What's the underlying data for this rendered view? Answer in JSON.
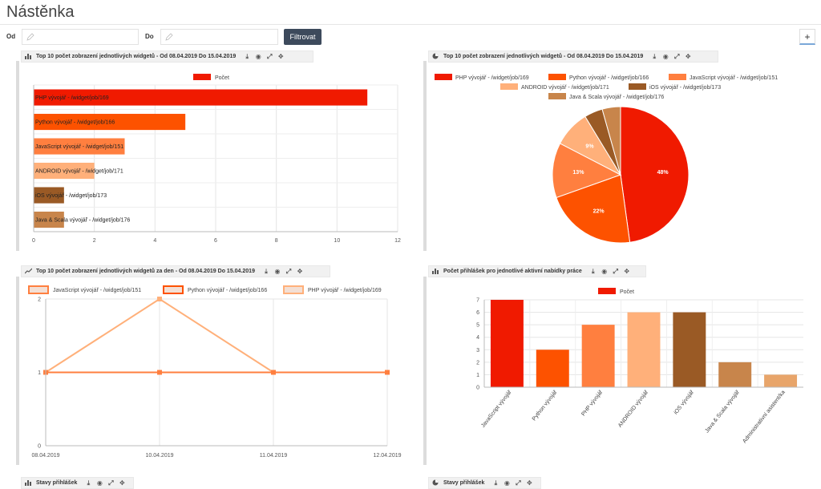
{
  "page": {
    "title": "Nástěnka"
  },
  "filters": {
    "from_label": "Od",
    "to_label": "Do",
    "from_value": "",
    "to_value": "",
    "filter_button": "Filtrovat",
    "add_button": "+"
  },
  "tool_icons": [
    "download-icon",
    "eye-icon",
    "expand-icon",
    "move-icon"
  ],
  "panels": {
    "bar_top10": {
      "title": "Top 10 počet zobrazení jednotlivých widgetů - Od 08.04.2019 Do 15.04.2019",
      "icon": "bar-chart-icon"
    },
    "pie_top10": {
      "title": "Top 10 počet zobrazení jednotlivých widgetů - Od 08.04.2019 Do 15.04.2019",
      "icon": "pie-chart-icon"
    },
    "line_daily": {
      "title": "Top 10 počet zobrazení jednotlivých widgetů za den - Od 08.04.2019 Do 15.04.2019",
      "icon": "line-chart-icon"
    },
    "bar_applications": {
      "title": "Počet přihlášek pro jednotlivé aktivní nabídky práce",
      "icon": "bar-chart-icon"
    },
    "states_left": {
      "title": "Stavy přihlášek",
      "icon": "bar-chart-icon"
    },
    "states_right": {
      "title": "Stavy přihlášek",
      "icon": "pie-chart-icon"
    }
  },
  "chart_data": [
    {
      "id": "hbar",
      "type": "bar",
      "orientation": "horizontal",
      "legend": "Počet",
      "categories": [
        "PHP vývojář - /widget/job/169",
        "Python vývojář - /widget/job/166",
        "JavaScript vývojář - /widget/job/151",
        "ANDROID vývojář - /widget/job/171",
        "iOS vývojář - /widget/job/173",
        "Java & Scala vývojář - /widget/job/176"
      ],
      "values": [
        11,
        5,
        3,
        2,
        1,
        1
      ],
      "colors": [
        "#f01a00",
        "#fd5200",
        "#ff7f3f",
        "#ffb07a",
        "#9a5a25",
        "#c8854b"
      ],
      "xlim": [
        0,
        12
      ],
      "xticks": [
        0,
        2,
        4,
        6,
        8,
        10,
        12
      ]
    },
    {
      "id": "pie",
      "type": "pie",
      "legend": [
        "PHP vývojář - /widget/job/169",
        "Python vývojář - /widget/job/166",
        "JavaScript vývojář - /widget/job/151",
        "ANDROID vývojář - /widget/job/171",
        "iOS vývojář - /widget/job/173",
        "Java & Scala vývojář - /widget/job/176"
      ],
      "values": [
        11,
        5,
        3,
        2,
        1,
        1
      ],
      "labels": [
        "48%",
        "22%",
        "13%",
        "9%",
        "",
        ""
      ],
      "colors": [
        "#f01a00",
        "#fd5200",
        "#ff7f3f",
        "#ffb07a",
        "#9a5a25",
        "#c8854b"
      ]
    },
    {
      "id": "line",
      "type": "line",
      "x": [
        "08.04.2019",
        "10.04.2019",
        "11.04.2019",
        "12.04.2019"
      ],
      "series": [
        {
          "name": "JavaScript vývojář - /widget/job/151",
          "values": [
            1,
            1,
            1,
            1
          ],
          "color": "#ff7f3f"
        },
        {
          "name": "Python vývojář - /widget/job/166",
          "values": [
            1,
            1,
            1,
            1
          ],
          "color": "#fd5200"
        },
        {
          "name": "PHP vývojář - /widget/job/169",
          "values": [
            1,
            2,
            1,
            null
          ],
          "color": "#ffb07a"
        }
      ],
      "ylim": [
        0,
        2
      ],
      "yticks": [
        0,
        1,
        2
      ]
    },
    {
      "id": "vbar",
      "type": "bar",
      "orientation": "vertical",
      "legend": "Počet",
      "categories": [
        "JavaScript vývojář",
        "Python vývojář",
        "PHP vývojář",
        "ANDROID vývojář",
        "iOS vývojář",
        "Java & Scala vývojář",
        "Administrativní asistent/ka"
      ],
      "values": [
        7,
        3,
        5,
        6,
        6,
        2,
        1
      ],
      "colors": [
        "#f01a00",
        "#fd5200",
        "#ff7f3f",
        "#ffb07a",
        "#9a5a25",
        "#c8854b",
        "#e8a56a"
      ],
      "ylim": [
        0,
        7
      ],
      "yticks": [
        0,
        1,
        2,
        3,
        4,
        5,
        6,
        7
      ]
    }
  ]
}
